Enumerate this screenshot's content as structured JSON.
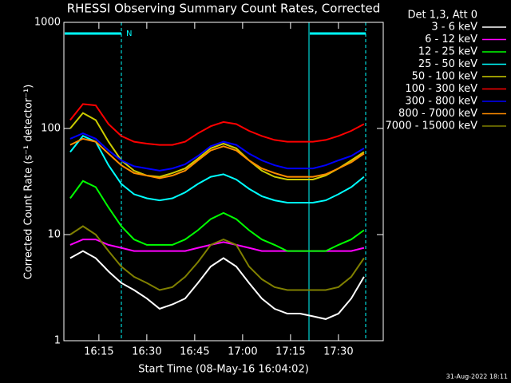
{
  "chart_data": {
    "type": "line",
    "title": "RHESSI Observing Summary Count Rates, Corrected",
    "x_label": "Start Time (08-May-16 16:04:02)",
    "y_label": "Corrected Count Rate (s⁻¹ detector⁻¹)",
    "legend_title": "Det 1,3, Att 0",
    "annotation": "N",
    "timestamp": "31-Aug-2022 18:11",
    "log_y": true,
    "xlim": [
      "16:04:02",
      "17:44:02"
    ],
    "xticks": [
      "16:15",
      "16:30",
      "16:45",
      "17:00",
      "17:15",
      "17:30"
    ],
    "ylim": [
      1,
      1000
    ],
    "yticks": [
      1,
      10,
      100,
      1000
    ],
    "x": [
      "16:06",
      "16:10",
      "16:14",
      "16:18",
      "16:22",
      "16:26",
      "16:30",
      "16:34",
      "16:38",
      "16:42",
      "16:46",
      "16:50",
      "16:54",
      "16:58",
      "17:02",
      "17:06",
      "17:10",
      "17:14",
      "17:18",
      "17:22",
      "17:26",
      "17:30",
      "17:34",
      "17:38"
    ],
    "series": [
      {
        "name": "3 - 6 keV",
        "color": "#ffffff",
        "values": [
          6,
          7,
          6,
          4.5,
          3.5,
          3,
          2.5,
          2,
          2.2,
          2.5,
          3.5,
          5,
          6,
          5,
          3.5,
          2.5,
          2,
          1.8,
          1.8,
          1.7,
          1.6,
          1.8,
          2.5,
          4
        ]
      },
      {
        "name": "6 - 12 keV",
        "color": "#ff00ff",
        "values": [
          8,
          9,
          9,
          8,
          7.5,
          7,
          7,
          7,
          7,
          7,
          7.5,
          8,
          8.5,
          8,
          7.5,
          7,
          7,
          7,
          7,
          7,
          7,
          7,
          7,
          7.5
        ]
      },
      {
        "name": "12 - 25 keV",
        "color": "#00ff00",
        "values": [
          22,
          32,
          28,
          18,
          12,
          9,
          8,
          8,
          8,
          9,
          11,
          14,
          16,
          14,
          11,
          9,
          8,
          7,
          7,
          7,
          7,
          8,
          9,
          11
        ]
      },
      {
        "name": "25 - 50 keV",
        "color": "#00ffff",
        "values": [
          60,
          85,
          75,
          45,
          30,
          24,
          22,
          21,
          22,
          25,
          30,
          35,
          37,
          33,
          27,
          23,
          21,
          20,
          20,
          20,
          21,
          24,
          28,
          35
        ]
      },
      {
        "name": "50 - 100 keV",
        "color": "#cccc00",
        "values": [
          100,
          140,
          120,
          75,
          50,
          40,
          36,
          35,
          38,
          42,
          52,
          65,
          72,
          65,
          50,
          40,
          35,
          33,
          33,
          33,
          36,
          42,
          50,
          60
        ]
      },
      {
        "name": "100 - 300 keV",
        "color": "#ff0000",
        "values": [
          120,
          170,
          165,
          110,
          85,
          75,
          72,
          70,
          70,
          75,
          90,
          105,
          115,
          110,
          95,
          85,
          78,
          75,
          75,
          75,
          78,
          85,
          95,
          110
        ]
      },
      {
        "name": "300 - 800 keV",
        "color": "#0000ff",
        "values": [
          80,
          90,
          80,
          62,
          50,
          44,
          42,
          40,
          42,
          46,
          55,
          68,
          75,
          70,
          58,
          50,
          45,
          42,
          42,
          42,
          45,
          50,
          55,
          65
        ]
      },
      {
        "name": "800 - 7000 keV",
        "color": "#ff8c00",
        "values": [
          70,
          80,
          75,
          58,
          45,
          38,
          36,
          34,
          36,
          40,
          50,
          62,
          68,
          62,
          50,
          42,
          38,
          35,
          35,
          35,
          37,
          42,
          48,
          58
        ]
      },
      {
        "name": "7000 - 15000 keV",
        "color": "#808000",
        "values": [
          10,
          12,
          10,
          7,
          5,
          4,
          3.5,
          3,
          3.2,
          4,
          5.5,
          8,
          9,
          8,
          5,
          3.8,
          3.2,
          3,
          3,
          3,
          3,
          3.2,
          4,
          6
        ]
      }
    ]
  }
}
